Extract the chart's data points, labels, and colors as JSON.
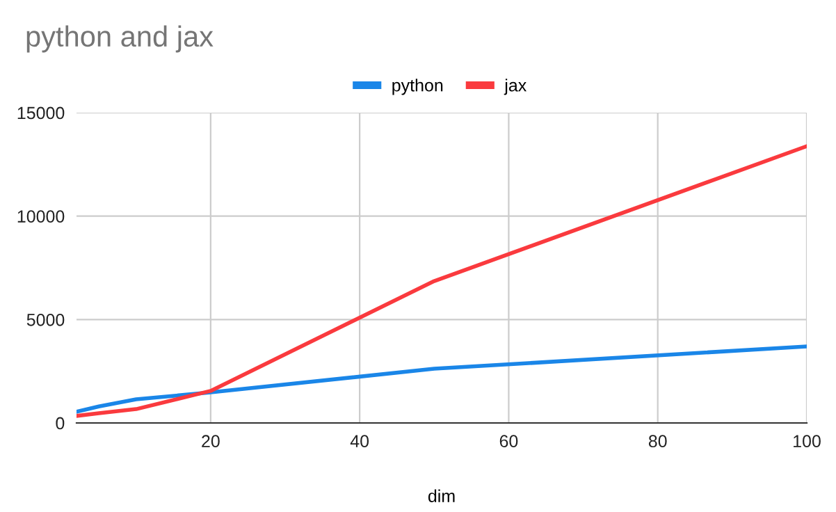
{
  "chart_data": {
    "type": "line",
    "title": "python and jax",
    "xlabel": "dim",
    "x": [
      2,
      5,
      10,
      20,
      50,
      100
    ],
    "series": [
      {
        "name": "python",
        "color": "#1a86e8",
        "values": [
          540,
          800,
          1140,
          1480,
          2620,
          3700
        ]
      },
      {
        "name": "jax",
        "color": "#fa3a3e",
        "values": [
          340,
          470,
          670,
          1550,
          6860,
          13380
        ]
      }
    ],
    "xlim": [
      2,
      100
    ],
    "xticks": [
      20,
      40,
      60,
      80,
      100
    ],
    "ylim": [
      0,
      15000
    ],
    "yticks": [
      0,
      5000,
      10000,
      15000
    ],
    "grid": true,
    "legend": "top",
    "marker": "none",
    "line_style": "solid"
  }
}
